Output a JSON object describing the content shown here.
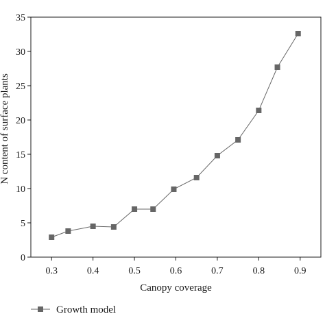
{
  "chart_data": {
    "type": "line",
    "title": "",
    "xlabel": "Canopy coverage",
    "ylabel": "N content of surface plants",
    "xlim": [
      0.25,
      0.95
    ],
    "ylim": [
      0,
      35
    ],
    "xticks": [
      0.3,
      0.4,
      0.5,
      0.6,
      0.7,
      0.8,
      0.9
    ],
    "yticks": [
      0,
      5,
      10,
      15,
      20,
      25,
      30,
      35
    ],
    "xtick_labels": [
      "0.3",
      "0.4",
      "0.5",
      "0.6",
      "0.7",
      "0.8",
      "0.9"
    ],
    "ytick_labels": [
      "0",
      "5",
      "10",
      "15",
      "20",
      "25",
      "30",
      "35"
    ],
    "grid": false,
    "legend_position": "bottom-left",
    "series": [
      {
        "name": "Growth model",
        "color": "#666666",
        "marker": "square",
        "x": [
          0.3,
          0.34,
          0.4,
          0.45,
          0.5,
          0.545,
          0.595,
          0.65,
          0.7,
          0.75,
          0.8,
          0.845,
          0.895
        ],
        "y": [
          2.9,
          3.8,
          4.5,
          4.4,
          7.0,
          7.0,
          9.9,
          11.6,
          14.8,
          17.1,
          21.4,
          27.7,
          32.6
        ]
      }
    ]
  }
}
